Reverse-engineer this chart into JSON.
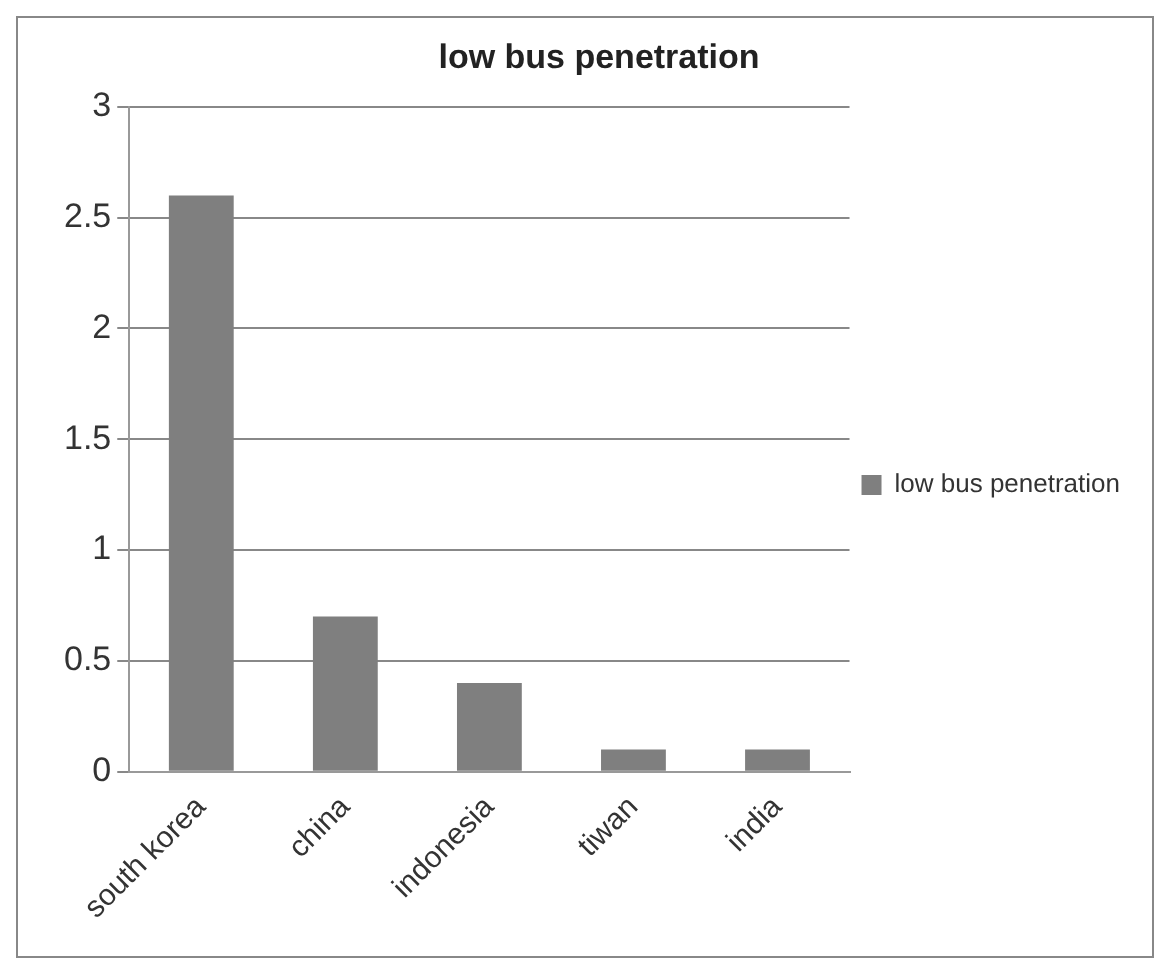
{
  "chart_data": {
    "type": "bar",
    "title": "low bus penetration",
    "categories": [
      "south korea",
      "china",
      "indonesia",
      "tiwan",
      "india"
    ],
    "series": [
      {
        "name": "low bus penetration",
        "color": "#7f7f7f",
        "values": [
          2.6,
          0.7,
          0.4,
          0.1,
          0.1
        ]
      }
    ],
    "ylim": [
      0,
      3
    ],
    "yticks": [
      0,
      0.5,
      1,
      1.5,
      2,
      2.5,
      3
    ],
    "grid": "y",
    "legend": "right"
  }
}
